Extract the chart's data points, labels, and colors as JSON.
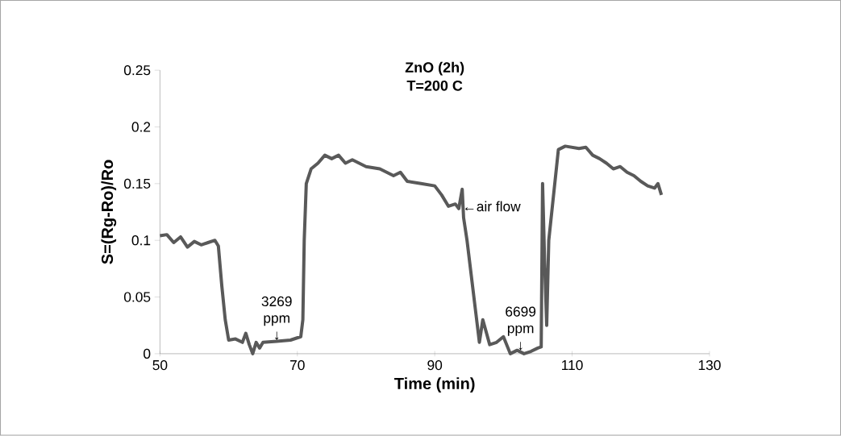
{
  "chart_data": {
    "type": "line",
    "title": "ZnO (2h)",
    "subtitle": "T=200 C",
    "xlabel": "Time (min)",
    "ylabel": "S=(Rg-Ro)/Ro",
    "xlim": [
      50,
      130
    ],
    "xticks": [
      50,
      70,
      90,
      110,
      130
    ],
    "ylim": [
      0,
      0.25
    ],
    "yticks": [
      0,
      0.05,
      0.1,
      0.15,
      0.2,
      0.25
    ],
    "grid": false,
    "legend": false,
    "marker": "none",
    "line_style": "solid",
    "series": [
      {
        "color": "#595959",
        "x": [
          50,
          51,
          52,
          53,
          54,
          55,
          56,
          57,
          58,
          58.5,
          59,
          59.5,
          60,
          61,
          62,
          62.5,
          63,
          63.5,
          64,
          64.5,
          65,
          67,
          69,
          70.5,
          70.8,
          71,
          71.3,
          72,
          73,
          74,
          75,
          76,
          77,
          78,
          80,
          82,
          84,
          85,
          86,
          88,
          90,
          91,
          92,
          93,
          93.5,
          94,
          94.2,
          94.7,
          95.5,
          96,
          96.5,
          97,
          98,
          99,
          100,
          101,
          102,
          103,
          104,
          105,
          105.5,
          105.7,
          106,
          106.3,
          106.6,
          108,
          109,
          111,
          112,
          113,
          114,
          115,
          116,
          117,
          118,
          119,
          120,
          121,
          122,
          122.5,
          123
        ],
        "values": [
          0.104,
          0.105,
          0.098,
          0.103,
          0.094,
          0.099,
          0.096,
          0.098,
          0.1,
          0.095,
          0.06,
          0.03,
          0.012,
          0.013,
          0.01,
          0.018,
          0.008,
          0.0,
          0.01,
          0.005,
          0.01,
          0.011,
          0.012,
          0.015,
          0.03,
          0.1,
          0.15,
          0.163,
          0.168,
          0.175,
          0.172,
          0.175,
          0.168,
          0.171,
          0.165,
          0.163,
          0.157,
          0.16,
          0.152,
          0.15,
          0.148,
          0.14,
          0.13,
          0.132,
          0.128,
          0.145,
          0.12,
          0.1,
          0.06,
          0.035,
          0.01,
          0.03,
          0.008,
          0.01,
          0.015,
          0.0,
          0.003,
          0.0,
          0.002,
          0.005,
          0.006,
          0.15,
          0.08,
          0.025,
          0.1,
          0.18,
          0.183,
          0.181,
          0.182,
          0.175,
          0.172,
          0.168,
          0.163,
          0.165,
          0.16,
          0.157,
          0.152,
          0.148,
          0.146,
          0.15,
          0.14
        ]
      }
    ],
    "annotations": [
      {
        "text": "3269 ppm ↓",
        "x": 67,
        "y": 0.012
      },
      {
        "text": "←air flow",
        "x": 94,
        "y": 0.13
      },
      {
        "text": "6699 ppm ↓",
        "x": 102.5,
        "y": 0.003
      }
    ]
  }
}
